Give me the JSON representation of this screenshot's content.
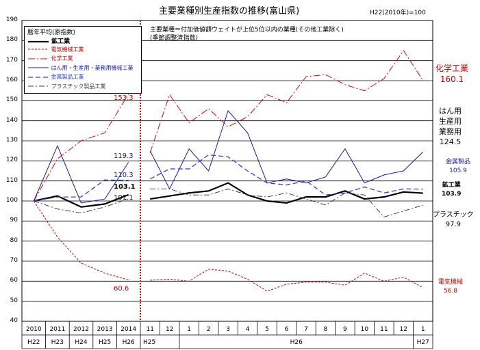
{
  "header": {
    "title": "主要業種別生産指数の推移(富山県)",
    "base_note": "H22(2010年)=100",
    "left_section_note": "暦年平均(原指数)",
    "right_section_note_1": "主要業種＝付加価値額ウェイトが上位5位以内の業種(その他工業除く)",
    "right_section_note_2": "(季節調整済指数)"
  },
  "chart_data": {
    "type": "line",
    "ylim": [
      40,
      190
    ],
    "yticks": [
      40,
      50,
      60,
      70,
      80,
      90,
      100,
      110,
      120,
      130,
      140,
      150,
      160,
      170,
      180,
      190
    ],
    "annual": {
      "categories": [
        "2010",
        "2011",
        "2012",
        "2013",
        "2014"
      ],
      "eras": [
        "H22",
        "H23",
        "H24",
        "H25",
        "H26"
      ]
    },
    "monthly": {
      "categories": [
        "11",
        "12",
        "1",
        "2",
        "3",
        "4",
        "5",
        "6",
        "7",
        "8",
        "9",
        "10",
        "11",
        "12",
        "1"
      ],
      "eras": [
        {
          "label": "H25",
          "span": [
            0,
            1
          ]
        },
        {
          "label": "H26",
          "span": [
            2,
            13
          ]
        },
        {
          "label": "H27",
          "span": [
            14,
            14
          ]
        }
      ]
    },
    "series": [
      {
        "name": "鉱工業",
        "color": "#000000",
        "dash": "",
        "width": 2.2,
        "annual": [
          100,
          102.5,
          97,
          98.5,
          103.1
        ],
        "monthly": [
          101,
          102.5,
          104,
          105,
          109,
          103,
          100,
          99,
          102,
          102,
          105,
          101,
          102,
          104.5,
          103.9
        ],
        "annual_label": "103.1",
        "end_label": "鉱工業",
        "end_value": "103.9"
      },
      {
        "name": "電気機械工業",
        "color": "#c00000",
        "dash": "3,2",
        "width": 1,
        "annual": [
          100,
          82,
          69,
          64,
          60.6
        ],
        "monthly": [
          60.5,
          61,
          60,
          66,
          65,
          61,
          55,
          58.5,
          59.5,
          59.5,
          58,
          64,
          60,
          62,
          56.8
        ],
        "annual_label": "60.6",
        "end_label": "電気機械",
        "end_value": "56.8"
      },
      {
        "name": "化学工業",
        "color": "#e00000",
        "dash": "10,3,2,3",
        "width": 1,
        "annual": [
          100,
          121,
          130,
          134,
          153.3
        ],
        "monthly": [
          124,
          153,
          139,
          146,
          137,
          142,
          153,
          149,
          162,
          163,
          158,
          155,
          161,
          175,
          160.1
        ],
        "annual_label": "153.3",
        "end_label": "化学工業",
        "end_value": "160.1"
      },
      {
        "name": "はん用・生産用・業務用機械工業",
        "color": "#1a1aa0",
        "dash": "",
        "width": 1,
        "annual": [
          100,
          127.5,
          99,
          101,
          119.3
        ],
        "monthly": [
          125,
          106,
          126,
          115,
          145,
          134,
          109,
          111,
          109,
          112,
          126,
          109,
          113,
          115,
          124.5
        ],
        "annual_label": "119.3",
        "end_label": "はん用\n生産用\n業務用",
        "end_value": "124.5"
      },
      {
        "name": "金属製品工業",
        "color": "#2a40d0",
        "dash": "7,4",
        "width": 1.3,
        "annual": [
          100,
          102,
          102,
          110.5,
          110.3
        ],
        "monthly": [
          111,
          116,
          116,
          123,
          122,
          115,
          109,
          108,
          110,
          103,
          104,
          107,
          104,
          106,
          105.9
        ],
        "annual_label": "110.3",
        "end_label": "金属製品",
        "end_value": "105.9"
      },
      {
        "name": "プラスチック製品工業",
        "color": "#404040",
        "dash": "8,3,2,3",
        "width": 1,
        "annual": [
          100,
          96,
          94,
          97,
          101.1
        ],
        "monthly": [
          106,
          106,
          103,
          103,
          106,
          103,
          102,
          104,
          101,
          98,
          104,
          103,
          92,
          95,
          97.9
        ],
        "annual_label": "101.1",
        "end_label": "プラスチック",
        "end_value": "97.9"
      }
    ]
  }
}
